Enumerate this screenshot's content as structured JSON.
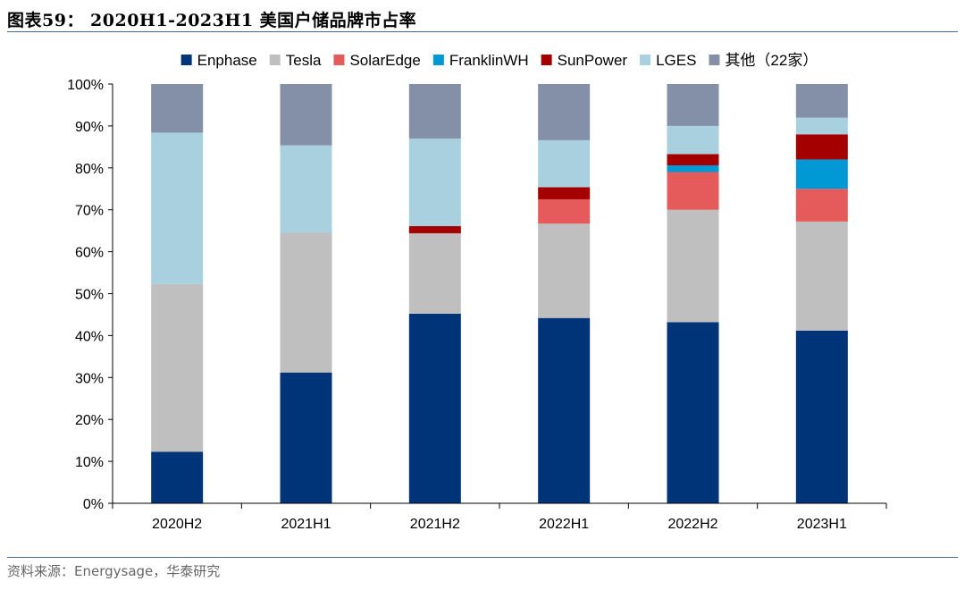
{
  "figure": {
    "title": "图表59：  2020H1-2023H1 美国户储品牌市占率",
    "source": "资料来源：Energysage，华泰研究"
  },
  "colors": {
    "rule": "#4a6a8c",
    "axis": "#000000"
  },
  "chart_data": {
    "type": "bar",
    "stacked": true,
    "title": "",
    "xlabel": "",
    "ylabel": "",
    "ylim": [
      0,
      100
    ],
    "yticks": [
      0,
      10,
      20,
      30,
      40,
      50,
      60,
      70,
      80,
      90,
      100
    ],
    "ytick_labels": [
      "0%",
      "10%",
      "20%",
      "30%",
      "40%",
      "50%",
      "60%",
      "70%",
      "80%",
      "90%",
      "100%"
    ],
    "grid": false,
    "legend_position": "top",
    "categories": [
      "2020H2",
      "2021H1",
      "2021H2",
      "2022H1",
      "2022H2",
      "2023H1"
    ],
    "series": [
      {
        "name": "Enphase",
        "color": "#003479",
        "values": [
          12.3,
          31.2,
          45.2,
          44.2,
          43.2,
          41.2
        ]
      },
      {
        "name": "Tesla",
        "color": "#bfbfbf",
        "values": [
          40.0,
          33.3,
          19.2,
          22.5,
          26.8,
          26.0
        ]
      },
      {
        "name": "SolarEdge",
        "color": "#e55b5b",
        "values": [
          0,
          0,
          0,
          5.8,
          9.0,
          7.8
        ]
      },
      {
        "name": "FranklinWH",
        "color": "#0099d5",
        "values": [
          0,
          0,
          0,
          0,
          1.6,
          7.0
        ]
      },
      {
        "name": "SunPower",
        "color": "#a50000",
        "values": [
          0,
          0,
          1.7,
          2.9,
          2.7,
          6.0
        ]
      },
      {
        "name": "LGES",
        "color": "#a8d0de",
        "values": [
          36.1,
          20.9,
          20.9,
          11.2,
          6.7,
          4.0
        ]
      },
      {
        "name": "其他（22家）",
        "color": "#8490a8",
        "values": [
          11.6,
          14.6,
          13.0,
          13.4,
          10.0,
          8.0
        ]
      }
    ]
  }
}
